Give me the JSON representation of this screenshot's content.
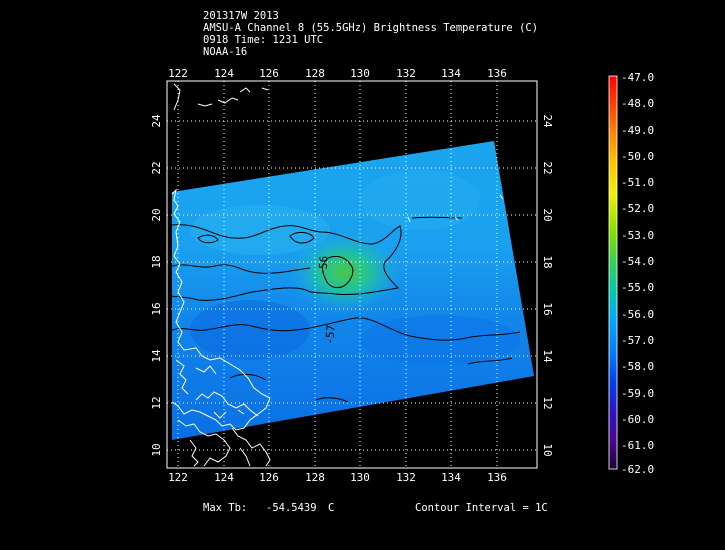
{
  "header": {
    "line1": "201317W 2013",
    "line2": "AMSU-A Channel 8 (55.5GHz) Brightness Temperature (C)",
    "line3": "0918 Time: 1231 UTC",
    "line4": "NOAA-16"
  },
  "map": {
    "lon_labels": [
      "122",
      "124",
      "126",
      "128",
      "130",
      "132",
      "134",
      "136"
    ],
    "lat_labels": [
      "10",
      "12",
      "14",
      "16",
      "18",
      "20",
      "22",
      "24"
    ],
    "contour_labels": [
      "-56",
      "-57"
    ]
  },
  "colorbar": {
    "labels": [
      "-47.0",
      "-48.0",
      "-49.0",
      "-50.0",
      "-51.0",
      "-52.0",
      "-53.0",
      "-54.0",
      "-55.0",
      "-56.0",
      "-57.0",
      "-58.0",
      "-59.0",
      "-60.0",
      "-61.0",
      "-62.0"
    ],
    "colors": [
      "#ff0000",
      "#ff2a00",
      "#ff6a00",
      "#ffa000",
      "#ffd000",
      "#e8f000",
      "#a8e000",
      "#40d040",
      "#00c8a0",
      "#00a8ff",
      "#0080ff",
      "#0040f0",
      "#2818c8",
      "#4a0898",
      "#3a0060",
      "#200040"
    ]
  },
  "footer": {
    "max_tb_label": "Max Tb:",
    "max_tb_value": "-54.5439",
    "max_tb_unit": "C",
    "contour_interval": "Contour Interval = 1C"
  }
}
